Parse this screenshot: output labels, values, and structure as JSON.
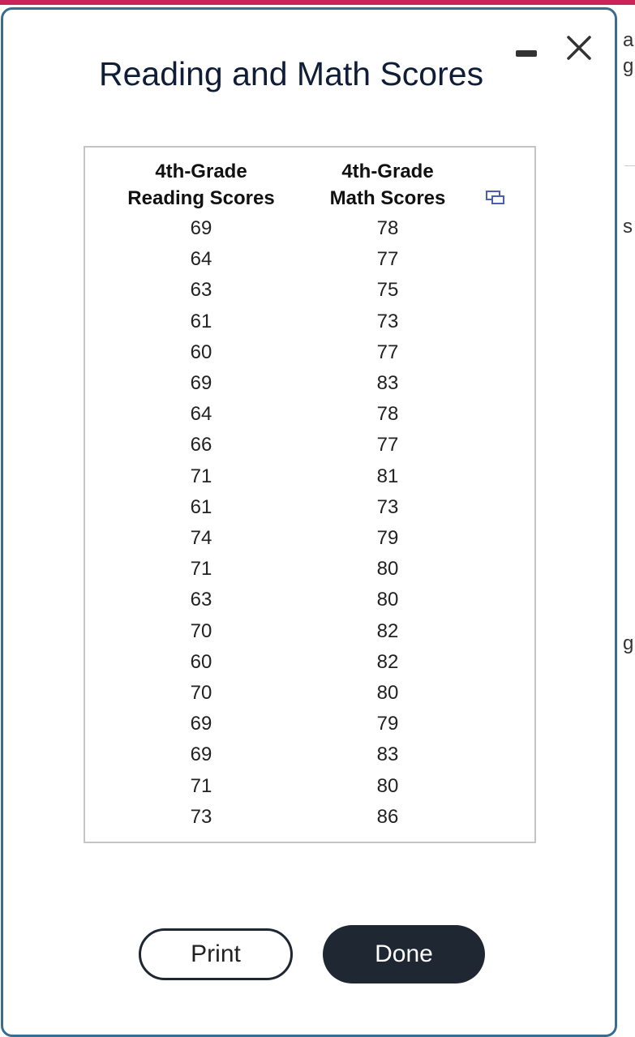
{
  "dialog": {
    "title": "Reading and Math Scores",
    "table": {
      "headers": [
        [
          "4th-Grade",
          "Reading Scores"
        ],
        [
          "4th-Grade",
          "Math Scores"
        ]
      ],
      "rows": [
        [
          69,
          78
        ],
        [
          64,
          77
        ],
        [
          63,
          75
        ],
        [
          61,
          73
        ],
        [
          60,
          77
        ],
        [
          69,
          83
        ],
        [
          64,
          78
        ],
        [
          66,
          77
        ],
        [
          71,
          81
        ],
        [
          61,
          73
        ],
        [
          74,
          79
        ],
        [
          71,
          80
        ],
        [
          63,
          80
        ],
        [
          70,
          82
        ],
        [
          60,
          82
        ],
        [
          70,
          80
        ],
        [
          69,
          79
        ],
        [
          69,
          83
        ],
        [
          71,
          80
        ],
        [
          73,
          86
        ]
      ]
    },
    "buttons": [
      "Print",
      "Done"
    ]
  },
  "background_fragments": [
    "a",
    "g",
    "s",
    "g"
  ]
}
